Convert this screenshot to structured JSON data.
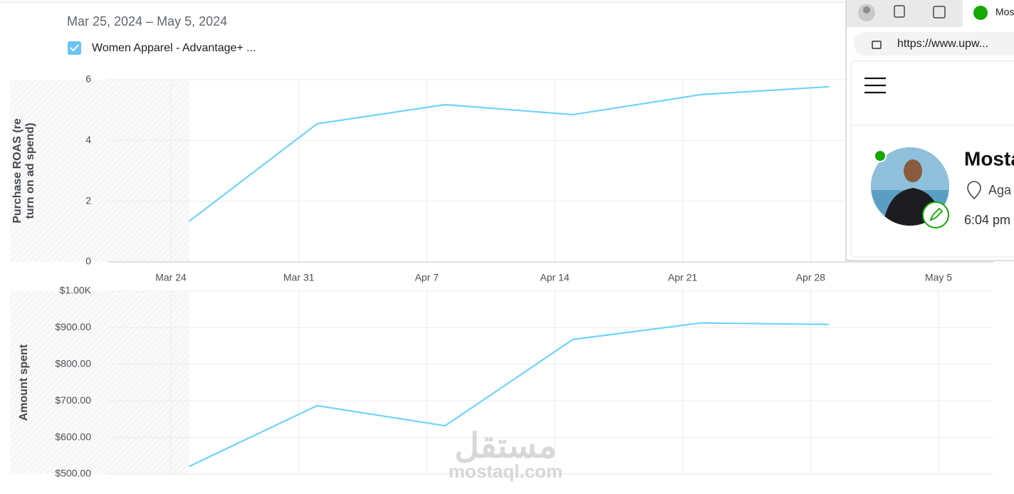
{
  "header": {
    "date_range": "Mar 25, 2024 – May 5, 2024"
  },
  "chart_data": [
    {
      "type": "line",
      "y_label": [
        "Purchase ROAS (re",
        "turn on ad spend)"
      ],
      "x": [
        "Mar 25",
        "Apr 1",
        "Apr 8",
        "Apr 15",
        "Apr 22",
        "Apr 29"
      ],
      "series": [
        {
          "name": "Women Apparel - Advantage+ ...",
          "color": "#6fd3fb",
          "values": [
            1.34,
            4.55,
            5.18,
            4.85,
            5.51,
            5.77
          ]
        }
      ],
      "xlim": [
        "Mar 21",
        "May 8"
      ],
      "xticks": [
        "Mar 24",
        "Mar 31",
        "Apr 7",
        "Apr 14",
        "Apr 21",
        "Apr 28",
        "May 5"
      ],
      "ylim": [
        0,
        6
      ],
      "yticks": [
        0,
        2,
        4,
        6
      ],
      "grid": true
    },
    {
      "type": "line",
      "y_label": [
        "Amount spent"
      ],
      "x": [
        "Mar 25",
        "Apr 1",
        "Apr 8",
        "Apr 15",
        "Apr 22",
        "Apr 29"
      ],
      "series": [
        {
          "color": "#6fd3fb",
          "values": [
            521,
            687,
            632,
            868,
            913,
            909
          ]
        }
      ],
      "xlim": [
        "Mar 21",
        "May 8"
      ],
      "ylim": [
        500,
        1000
      ],
      "yticks": [
        {
          "value": 500,
          "label": "$500.00"
        },
        {
          "value": 600,
          "label": "$600.00"
        },
        {
          "value": 700,
          "label": "$700.00"
        },
        {
          "value": 800,
          "label": "$800.00"
        },
        {
          "value": 900,
          "label": "$900.00"
        },
        {
          "value": 1000,
          "label": "$1.00K"
        }
      ],
      "grid": true
    }
  ],
  "browser": {
    "tab_title": "Mos",
    "url": "https://www.upw...",
    "profile": {
      "name": "Mosta",
      "location": "Aga",
      "time": "6:04 pm"
    }
  },
  "watermark": {
    "arabic": "مستقل",
    "latin": "mostaql.com"
  }
}
